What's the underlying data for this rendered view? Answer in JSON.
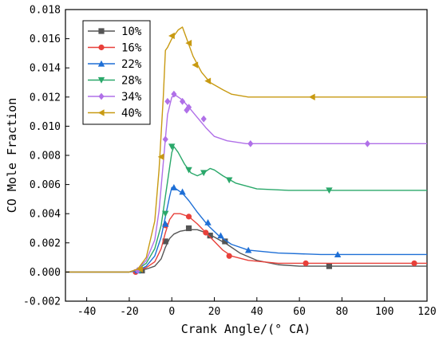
{
  "chart_data": {
    "type": "line",
    "xlabel": "Crank Angle/(° CA)",
    "ylabel": "CO Mole Fraction",
    "xlim": [
      -50,
      120
    ],
    "ylim": [
      -0.002,
      0.018
    ],
    "xticks": [
      -40,
      -20,
      0,
      20,
      40,
      60,
      80,
      100,
      120
    ],
    "yticks": [
      -0.002,
      0.0,
      0.002,
      0.004,
      0.006,
      0.008,
      0.01,
      0.012,
      0.014,
      0.016,
      0.018
    ],
    "xtick_labels": [
      "-40",
      "-20",
      "0",
      "20",
      "40",
      "60",
      "80",
      "100",
      "120"
    ],
    "ytick_labels": [
      "-0.002",
      "0.000",
      "0.002",
      "0.004",
      "0.006",
      "0.008",
      "0.010",
      "0.012",
      "0.014",
      "0.016",
      "0.018"
    ],
    "legend_position": "top-left",
    "grid": false,
    "series": [
      {
        "name": "10%",
        "color": "#555555",
        "marker": "square",
        "points": [
          [
            -50,
            0
          ],
          [
            -20,
            0
          ],
          [
            -16,
            0.0001
          ],
          [
            -12,
            0.0002
          ],
          [
            -8,
            0.0004
          ],
          [
            -5,
            0.0009
          ],
          [
            -3,
            0.0017
          ],
          [
            -1,
            0.0023
          ],
          [
            1,
            0.0026
          ],
          [
            4,
            0.0028
          ],
          [
            8,
            0.0029
          ],
          [
            12,
            0.0029
          ],
          [
            16,
            0.0027
          ],
          [
            20,
            0.0024
          ],
          [
            26,
            0.0019
          ],
          [
            32,
            0.0013
          ],
          [
            40,
            0.0008
          ],
          [
            50,
            0.0005
          ],
          [
            60,
            0.0004
          ],
          [
            80,
            0.0004
          ],
          [
            100,
            0.0004
          ],
          [
            120,
            0.0004
          ]
        ],
        "markers": [
          [
            -14,
            0.0001
          ],
          [
            -3,
            0.0021
          ],
          [
            8,
            0.003
          ],
          [
            18,
            0.0025
          ],
          [
            25,
            0.0021
          ],
          [
            74,
            0.0004
          ]
        ]
      },
      {
        "name": "16%",
        "color": "#e8403a",
        "marker": "circle",
        "points": [
          [
            -50,
            0
          ],
          [
            -20,
            0
          ],
          [
            -16,
            0.0001
          ],
          [
            -12,
            0.0003
          ],
          [
            -8,
            0.0007
          ],
          [
            -5,
            0.0016
          ],
          [
            -3,
            0.0027
          ],
          [
            -1,
            0.0036
          ],
          [
            1,
            0.004
          ],
          [
            4,
            0.004
          ],
          [
            8,
            0.0038
          ],
          [
            12,
            0.0033
          ],
          [
            16,
            0.0027
          ],
          [
            20,
            0.0021
          ],
          [
            24,
            0.0015
          ],
          [
            28,
            0.0011
          ],
          [
            36,
            0.0008
          ],
          [
            50,
            0.0006
          ],
          [
            70,
            0.0006
          ],
          [
            120,
            0.0006
          ]
        ],
        "markers": [
          [
            -17,
            0
          ],
          [
            -3,
            0.0032
          ],
          [
            8,
            0.0038
          ],
          [
            16,
            0.0027
          ],
          [
            27,
            0.0011
          ],
          [
            63,
            0.0006
          ],
          [
            114,
            0.0006
          ]
        ]
      },
      {
        "name": "22%",
        "color": "#1e6fd6",
        "marker": "triangle-up",
        "points": [
          [
            -50,
            0
          ],
          [
            -20,
            0
          ],
          [
            -16,
            0.0001
          ],
          [
            -12,
            0.0004
          ],
          [
            -8,
            0.0011
          ],
          [
            -5,
            0.0024
          ],
          [
            -3,
            0.0038
          ],
          [
            -1,
            0.0052
          ],
          [
            0,
            0.0058
          ],
          [
            2,
            0.0057
          ],
          [
            5,
            0.0054
          ],
          [
            8,
            0.0049
          ],
          [
            12,
            0.0041
          ],
          [
            17,
            0.0032
          ],
          [
            22,
            0.0025
          ],
          [
            28,
            0.0019
          ],
          [
            36,
            0.0015
          ],
          [
            50,
            0.0013
          ],
          [
            70,
            0.0012
          ],
          [
            120,
            0.0012
          ]
        ],
        "markers": [
          [
            -16,
            0.0001
          ],
          [
            -3,
            0.0033
          ],
          [
            1,
            0.0058
          ],
          [
            5,
            0.0055
          ],
          [
            17,
            0.0034
          ],
          [
            23,
            0.0025
          ],
          [
            36,
            0.0015
          ],
          [
            78,
            0.0012
          ]
        ]
      },
      {
        "name": "28%",
        "color": "#2aa86a",
        "marker": "triangle-down",
        "points": [
          [
            -50,
            0
          ],
          [
            -20,
            0
          ],
          [
            -16,
            0.0002
          ],
          [
            -12,
            0.0006
          ],
          [
            -8,
            0.0016
          ],
          [
            -5,
            0.0032
          ],
          [
            -3,
            0.0052
          ],
          [
            -1,
            0.0072
          ],
          [
            0,
            0.0082
          ],
          [
            1,
            0.0086
          ],
          [
            3,
            0.0082
          ],
          [
            6,
            0.0074
          ],
          [
            9,
            0.0068
          ],
          [
            12,
            0.0066
          ],
          [
            15,
            0.0068
          ],
          [
            18,
            0.0071
          ],
          [
            20,
            0.007
          ],
          [
            24,
            0.0066
          ],
          [
            30,
            0.0061
          ],
          [
            40,
            0.0057
          ],
          [
            55,
            0.0056
          ],
          [
            80,
            0.0056
          ],
          [
            120,
            0.0056
          ]
        ],
        "markers": [
          [
            -15,
            0.0001
          ],
          [
            -3,
            0.004
          ],
          [
            0,
            0.0086
          ],
          [
            8,
            0.007
          ],
          [
            15,
            0.0068
          ],
          [
            27,
            0.0063
          ],
          [
            74,
            0.0056
          ]
        ]
      },
      {
        "name": "34%",
        "color": "#b070e8",
        "marker": "diamond",
        "points": [
          [
            -50,
            0
          ],
          [
            -20,
            0
          ],
          [
            -16,
            0.0002
          ],
          [
            -12,
            0.0008
          ],
          [
            -8,
            0.0022
          ],
          [
            -6,
            0.0042
          ],
          [
            -4,
            0.0075
          ],
          [
            -2,
            0.0108
          ],
          [
            0,
            0.012
          ],
          [
            2,
            0.0121
          ],
          [
            5,
            0.0118
          ],
          [
            8,
            0.0113
          ],
          [
            12,
            0.0106
          ],
          [
            16,
            0.0099
          ],
          [
            20,
            0.0093
          ],
          [
            26,
            0.009
          ],
          [
            35,
            0.0088
          ],
          [
            50,
            0.0088
          ],
          [
            80,
            0.0088
          ],
          [
            120,
            0.0088
          ]
        ],
        "markers": [
          [
            -16,
            0.0001
          ],
          [
            -3,
            0.0091
          ],
          [
            -2,
            0.0117
          ],
          [
            1,
            0.0122
          ],
          [
            5,
            0.0117
          ],
          [
            8,
            0.0113
          ],
          [
            7,
            0.0111
          ],
          [
            15,
            0.0105
          ],
          [
            37,
            0.0088
          ],
          [
            92,
            0.0088
          ]
        ]
      },
      {
        "name": "40%",
        "color": "#c89a12",
        "marker": "triangle-left",
        "points": [
          [
            -50,
            0
          ],
          [
            -20,
            0
          ],
          [
            -16,
            0.0002
          ],
          [
            -12,
            0.001
          ],
          [
            -8,
            0.0035
          ],
          [
            -6,
            0.007
          ],
          [
            -4,
            0.012
          ],
          [
            -3,
            0.0152
          ],
          [
            -2,
            0.0154
          ],
          [
            0,
            0.016
          ],
          [
            3,
            0.0166
          ],
          [
            5,
            0.0168
          ],
          [
            7,
            0.016
          ],
          [
            10,
            0.0148
          ],
          [
            14,
            0.0137
          ],
          [
            18,
            0.013
          ],
          [
            24,
            0.0125
          ],
          [
            28,
            0.0122
          ],
          [
            36,
            0.012
          ],
          [
            60,
            0.012
          ],
          [
            120,
            0.012
          ]
        ],
        "markers": [
          [
            -15,
            0.0002
          ],
          [
            -5,
            0.0079
          ],
          [
            0,
            0.0162
          ],
          [
            8,
            0.0157
          ],
          [
            11,
            0.0142
          ],
          [
            17,
            0.0131
          ],
          [
            66,
            0.012
          ]
        ]
      }
    ]
  }
}
